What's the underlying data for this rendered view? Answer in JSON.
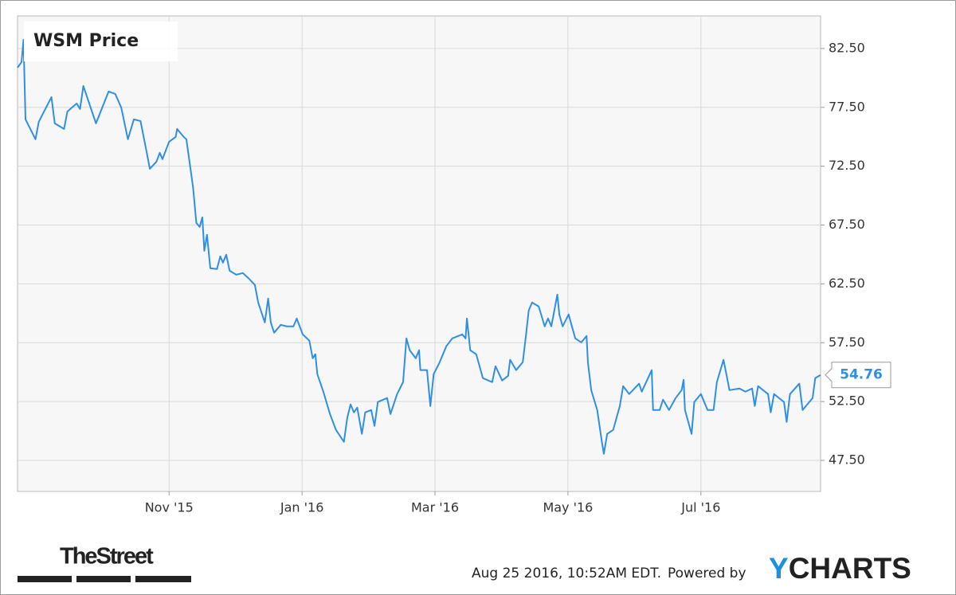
{
  "chart_data": {
    "type": "line",
    "title": "WSM Price",
    "x": [
      8.72,
      8.78,
      8.81,
      8.84,
      8.99,
      9.04,
      9.23,
      9.28,
      9.42,
      9.47,
      9.61,
      9.66,
      9.71,
      9.9,
      10.09,
      10.19,
      10.28,
      10.38,
      10.47,
      10.57,
      10.66,
      10.71,
      10.81,
      10.86,
      10.9,
      11.0,
      11.1,
      11.12,
      11.22,
      11.26,
      11.36,
      11.41,
      11.46,
      11.5,
      11.53,
      11.57,
      11.62,
      11.72,
      11.77,
      11.81,
      11.86,
      11.91,
      12.01,
      12.11,
      12.2,
      12.29,
      12.34,
      12.44,
      12.49,
      12.53,
      12.58,
      12.68,
      12.77,
      12.87,
      12.92,
      13.01,
      13.11,
      13.16,
      13.2,
      13.23,
      13.32,
      13.42,
      13.51,
      13.63,
      13.68,
      13.73,
      13.78,
      13.83,
      13.9,
      13.95,
      14.04,
      14.09,
      14.14,
      14.28,
      14.33,
      14.43,
      14.52,
      14.57,
      14.62,
      14.71,
      14.76,
      14.78,
      14.88,
      14.93,
      14.98,
      15.07,
      15.17,
      15.26,
      15.41,
      15.46,
      15.48,
      15.53,
      15.62,
      15.72,
      15.86,
      15.91,
      16.01,
      16.1,
      16.13,
      16.22,
      16.32,
      16.37,
      16.41,
      16.46,
      16.56,
      16.65,
      16.7,
      16.75,
      16.84,
      16.87,
      16.92,
      17.01,
      17.11,
      17.2,
      17.28,
      17.3,
      17.35,
      17.44,
      17.51,
      17.54,
      17.59,
      17.68,
      17.78,
      17.83,
      17.92,
      18.07,
      18.11,
      18.26,
      18.28,
      18.38,
      18.43,
      18.52,
      18.62,
      18.71,
      18.74,
      18.76,
      18.86,
      18.9,
      19.0,
      19.1,
      19.19,
      19.24,
      19.34,
      19.43,
      19.58,
      19.67,
      19.77,
      19.81,
      19.86,
      20.01,
      20.05,
      20.1,
      20.25,
      20.29,
      20.34,
      20.48,
      20.53,
      20.68,
      20.72,
      20.8
    ],
    "series": [
      {
        "name": "WSM Price",
        "color": "#2f8fe6",
        "values": [
          80.88,
          81.35,
          83.24,
          76.48,
          74.79,
          76.28,
          78.37,
          76.14,
          75.67,
          77.15,
          77.83,
          77.36,
          79.32,
          76.14,
          78.85,
          78.64,
          77.49,
          74.79,
          76.48,
          76.34,
          73.77,
          72.28,
          72.89,
          73.64,
          73.1,
          74.58,
          74.99,
          75.67,
          74.99,
          74.79,
          70.73,
          67.68,
          67.34,
          68.16,
          65.31,
          66.67,
          63.83,
          63.76,
          64.84,
          64.3,
          64.98,
          63.62,
          63.28,
          63.42,
          62.95,
          62.41,
          60.92,
          59.22,
          61.26,
          59.22,
          58.35,
          59.02,
          58.89,
          58.89,
          59.56,
          58.21,
          57.67,
          56.18,
          56.52,
          54.83,
          53.34,
          51.44,
          50.09,
          49.08,
          51.11,
          52.26,
          51.58,
          51.99,
          49.75,
          51.58,
          51.78,
          50.43,
          52.46,
          52.8,
          51.44,
          53.14,
          54.15,
          57.87,
          56.86,
          56.18,
          56.86,
          55.17,
          55.17,
          52.12,
          54.83,
          55.84,
          57.2,
          57.87,
          58.21,
          57.87,
          59.56,
          56.86,
          56.52,
          54.49,
          54.15,
          55.5,
          54.29,
          54.69,
          56.05,
          55.17,
          55.84,
          58.21,
          60.24,
          60.92,
          60.58,
          58.89,
          59.56,
          58.89,
          61.59,
          59.9,
          58.89,
          59.9,
          57.87,
          57.53,
          58.07,
          55.84,
          53.47,
          51.78,
          49.08,
          48.06,
          49.75,
          50.09,
          52.12,
          53.81,
          53.14,
          54.02,
          53.34,
          55.17,
          51.78,
          51.78,
          52.66,
          51.78,
          52.8,
          53.47,
          54.35,
          51.78,
          49.75,
          52.46,
          53.14,
          51.78,
          51.78,
          54.15,
          56.05,
          53.47,
          53.61,
          53.34,
          53.61,
          52.12,
          53.81,
          53.14,
          51.58,
          53.14,
          52.46,
          50.77,
          53.14,
          54.02,
          51.78,
          52.8,
          54.49,
          54.76
        ]
      }
    ],
    "xlim": [
      8.72,
      20.8
    ],
    "xticks": [
      {
        "value": 11,
        "label": "Nov '15"
      },
      {
        "value": 13,
        "label": "Jan '16"
      },
      {
        "value": 15,
        "label": "Mar '16"
      },
      {
        "value": 17,
        "label": "May '16"
      },
      {
        "value": 19,
        "label": "Jul '16"
      }
    ],
    "ylim": [
      44.86,
      85.27
    ],
    "yticks": [
      {
        "value": 47.5,
        "label": "47.50"
      },
      {
        "value": 52.5,
        "label": "52.50"
      },
      {
        "value": 57.5,
        "label": "57.50"
      },
      {
        "value": 62.5,
        "label": "62.50"
      },
      {
        "value": 67.5,
        "label": "67.50"
      },
      {
        "value": 72.5,
        "label": "72.50"
      },
      {
        "value": 77.5,
        "label": "77.50"
      },
      {
        "value": 82.5,
        "label": "82.50"
      }
    ],
    "grid": true,
    "publisher": "TheStreet",
    "timestamp": "Aug 25 2016, 10:52AM EDT.",
    "powered_by": "Powered by",
    "brand": "YCHARTS"
  }
}
